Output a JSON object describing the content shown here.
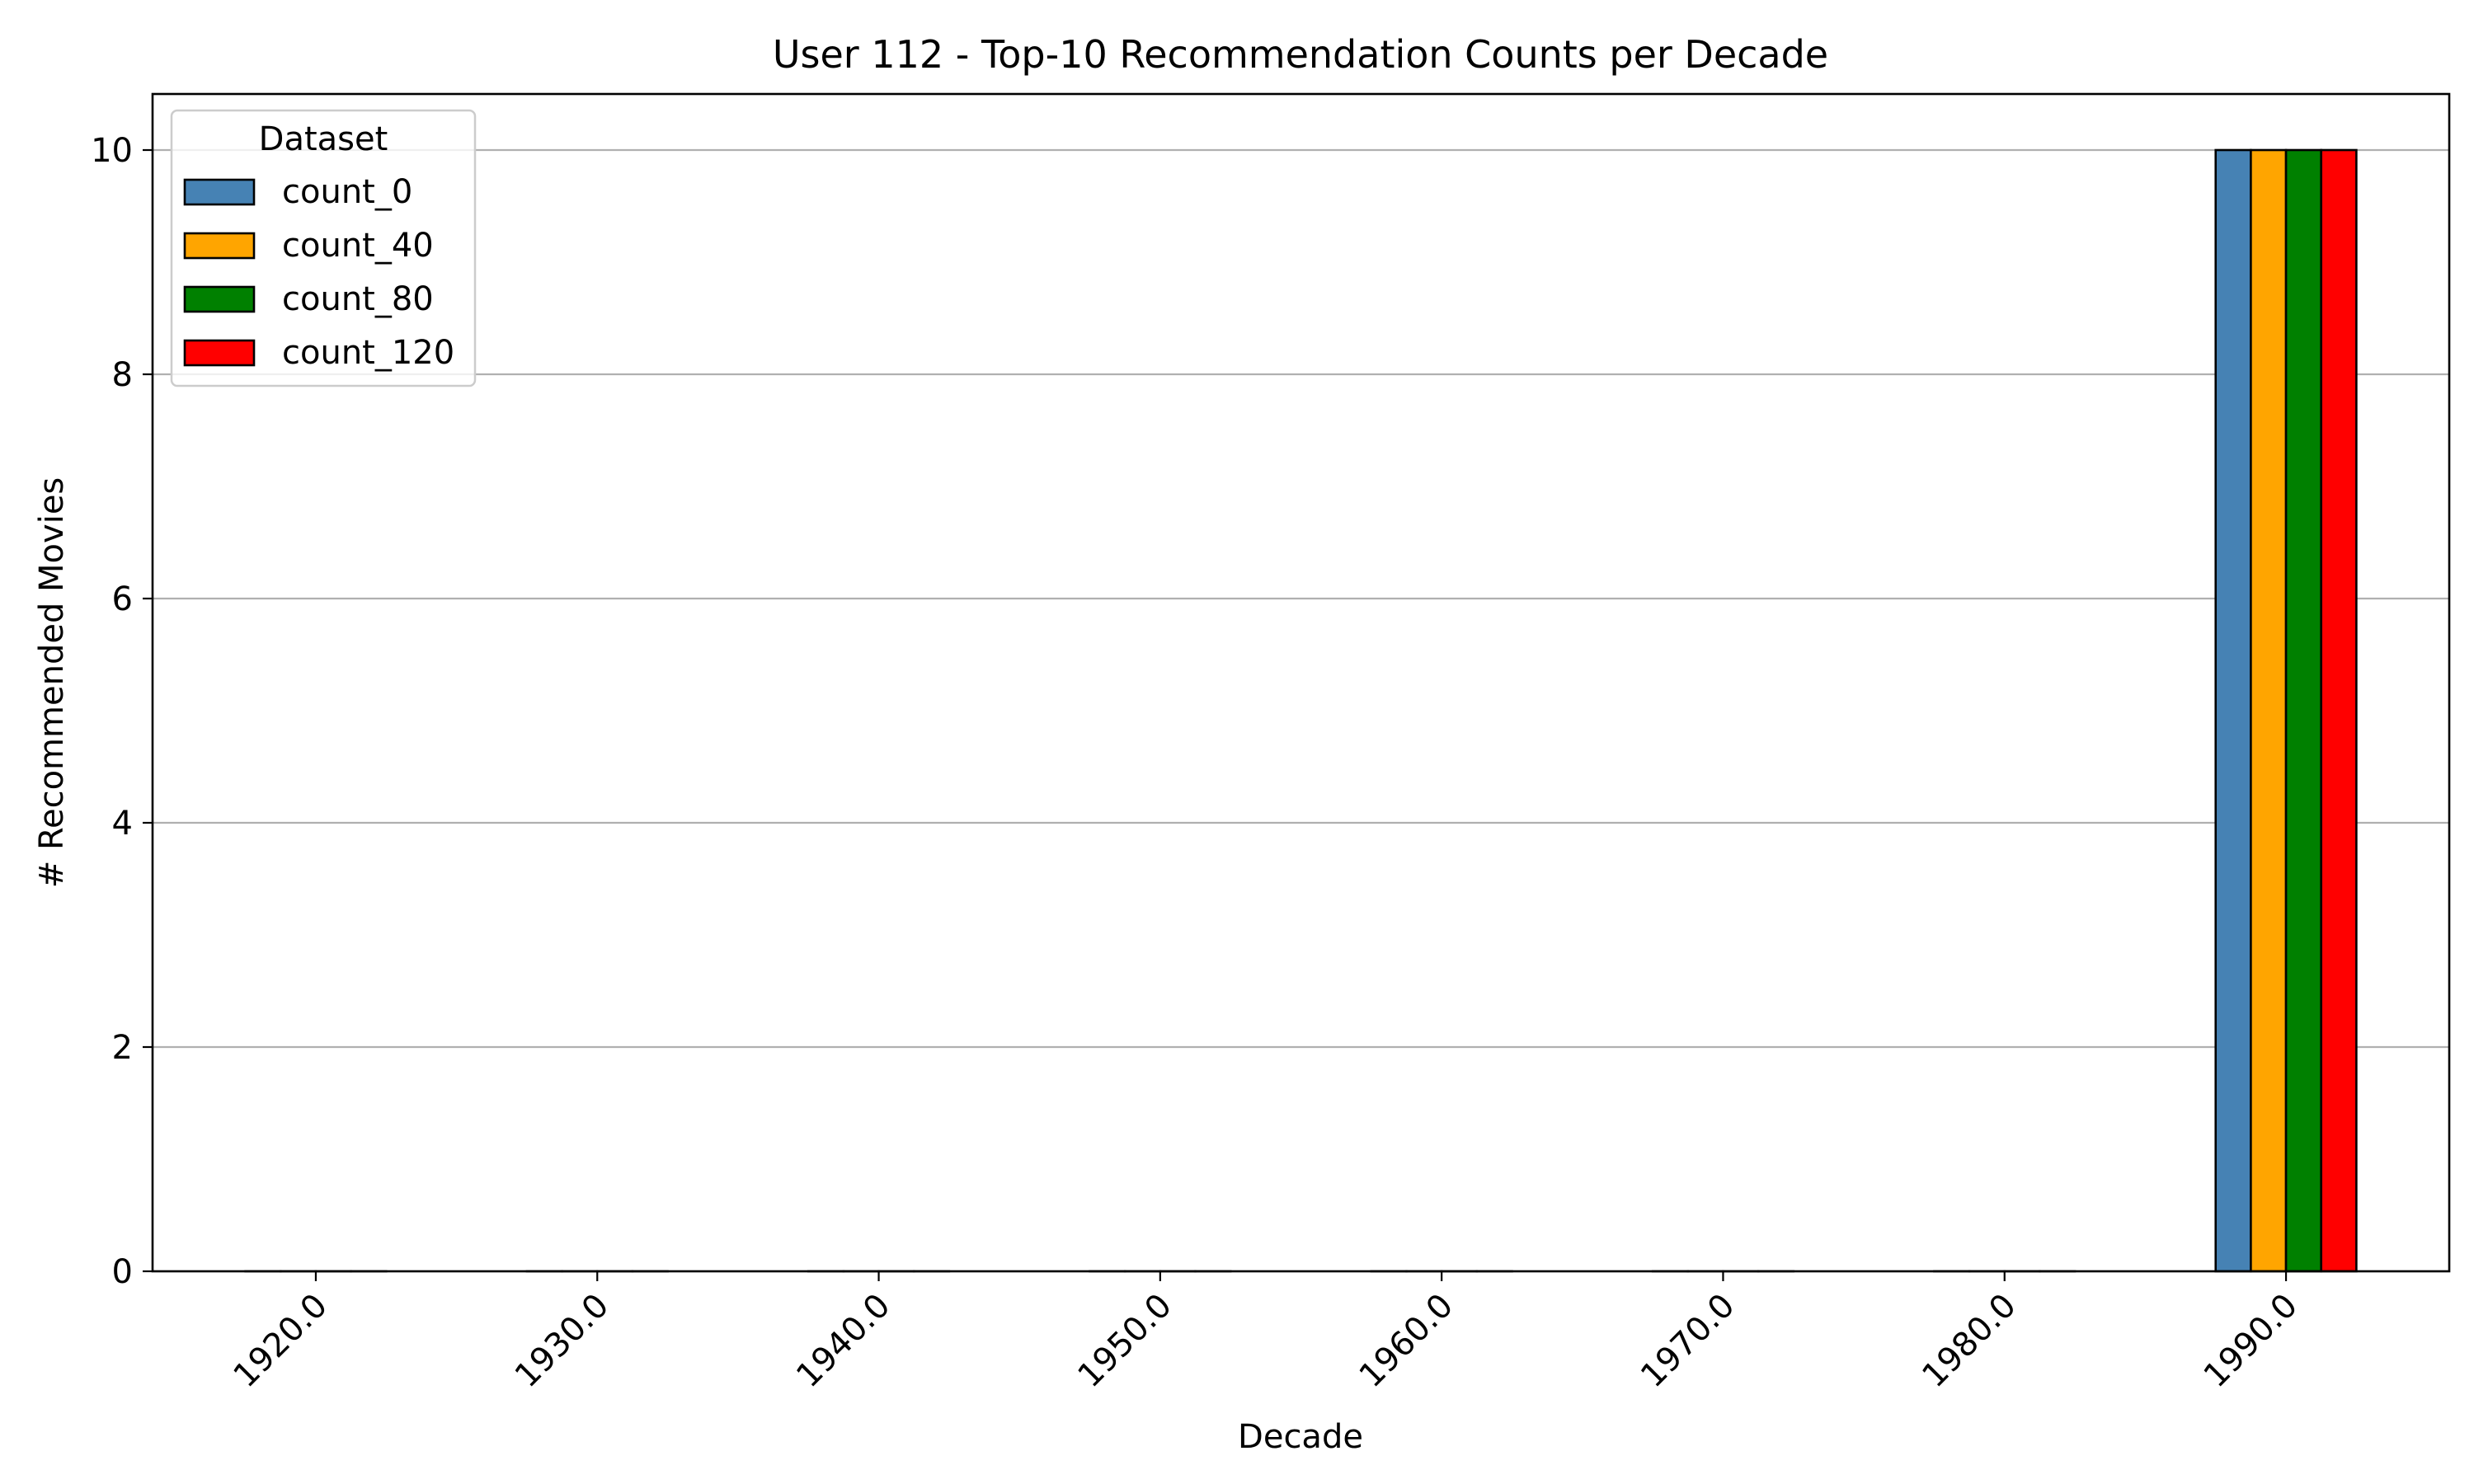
{
  "chart_data": {
    "type": "bar",
    "title": "User 112 - Top-10 Recommendation Counts per Decade",
    "xlabel": "Decade",
    "ylabel": "# Recommended Movies",
    "categories": [
      "1920.0",
      "1930.0",
      "1940.0",
      "1950.0",
      "1960.0",
      "1970.0",
      "1980.0",
      "1990.0"
    ],
    "series": [
      {
        "name": "count_0",
        "color": "#4682b4",
        "values": [
          0,
          0,
          0,
          0,
          0,
          0,
          0,
          10
        ]
      },
      {
        "name": "count_40",
        "color": "#ffa500",
        "values": [
          0,
          0,
          0,
          0,
          0,
          0,
          0,
          10
        ]
      },
      {
        "name": "count_80",
        "color": "#008000",
        "values": [
          0,
          0,
          0,
          0,
          0,
          0,
          0,
          10
        ]
      },
      {
        "name": "count_120",
        "color": "#ff0000",
        "values": [
          0,
          0,
          0,
          0,
          0,
          0,
          0,
          10
        ]
      }
    ],
    "ylim": [
      0,
      10.5
    ],
    "yticks": [
      0,
      2,
      4,
      6,
      8,
      10
    ],
    "grid": "y",
    "legend": {
      "title": "Dataset",
      "placement": "top-left"
    }
  }
}
